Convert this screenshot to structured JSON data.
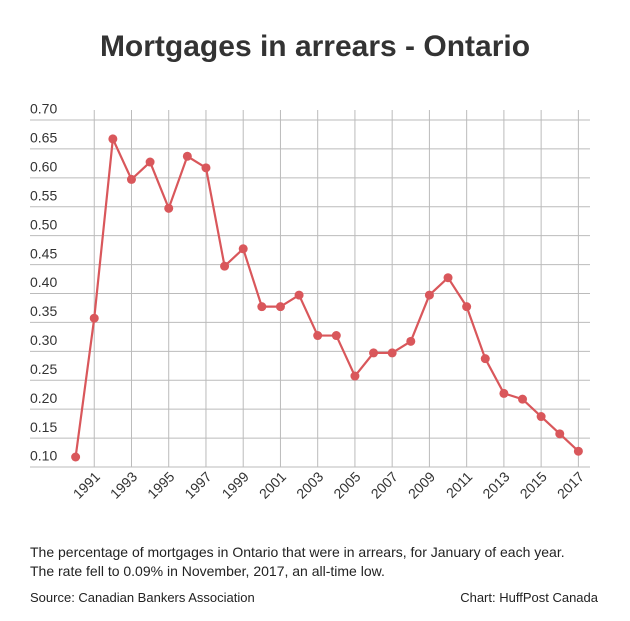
{
  "chart_data": {
    "type": "line",
    "title": "Mortgages in arrears - Ontario",
    "caption": "The percentage of mortgages in Ontario that were in arrears, for January of each year. The rate fell to 0.09% in November, 2017, an all-time low.",
    "source": "Source: Canadian Bankers Association",
    "credit": "Chart: HuffPost Canada",
    "x": [
      1990,
      1991,
      1992,
      1993,
      1994,
      1995,
      1996,
      1997,
      1998,
      1999,
      2000,
      2001,
      2002,
      2003,
      2004,
      2005,
      2006,
      2007,
      2008,
      2009,
      2010,
      2011,
      2012,
      2013,
      2014,
      2015,
      2016,
      2017
    ],
    "series": [
      {
        "color": "#d9575b",
        "values": [
          0.1,
          0.34,
          0.65,
          0.58,
          0.61,
          0.53,
          0.62,
          0.6,
          0.43,
          0.46,
          0.36,
          0.36,
          0.38,
          0.31,
          0.31,
          0.24,
          0.28,
          0.28,
          0.3,
          0.38,
          0.41,
          0.36,
          0.27,
          0.21,
          0.2,
          0.17,
          0.14,
          0.11
        ]
      }
    ],
    "xlim": [
      1989,
      2018
    ],
    "xticks": [
      1991,
      1993,
      1995,
      1997,
      1999,
      2001,
      2003,
      2005,
      2007,
      2009,
      2011,
      2013,
      2015,
      2017
    ],
    "ylim": [
      0.1,
      0.7
    ],
    "yticks": [
      {
        "value": 0.1,
        "label": "0.10"
      },
      0.15,
      {
        "value": 0.2,
        "label": "0.20"
      },
      0.25,
      {
        "value": 0.3,
        "label": "0.30"
      },
      0.35,
      {
        "value": 0.4,
        "label": "0.40"
      },
      0.45,
      {
        "value": 0.5,
        "label": "0.50"
      },
      0.55,
      {
        "value": 0.6,
        "label": "0.60"
      },
      0.65,
      {
        "value": 0.7,
        "label": "0.70"
      }
    ],
    "grid": true
  }
}
